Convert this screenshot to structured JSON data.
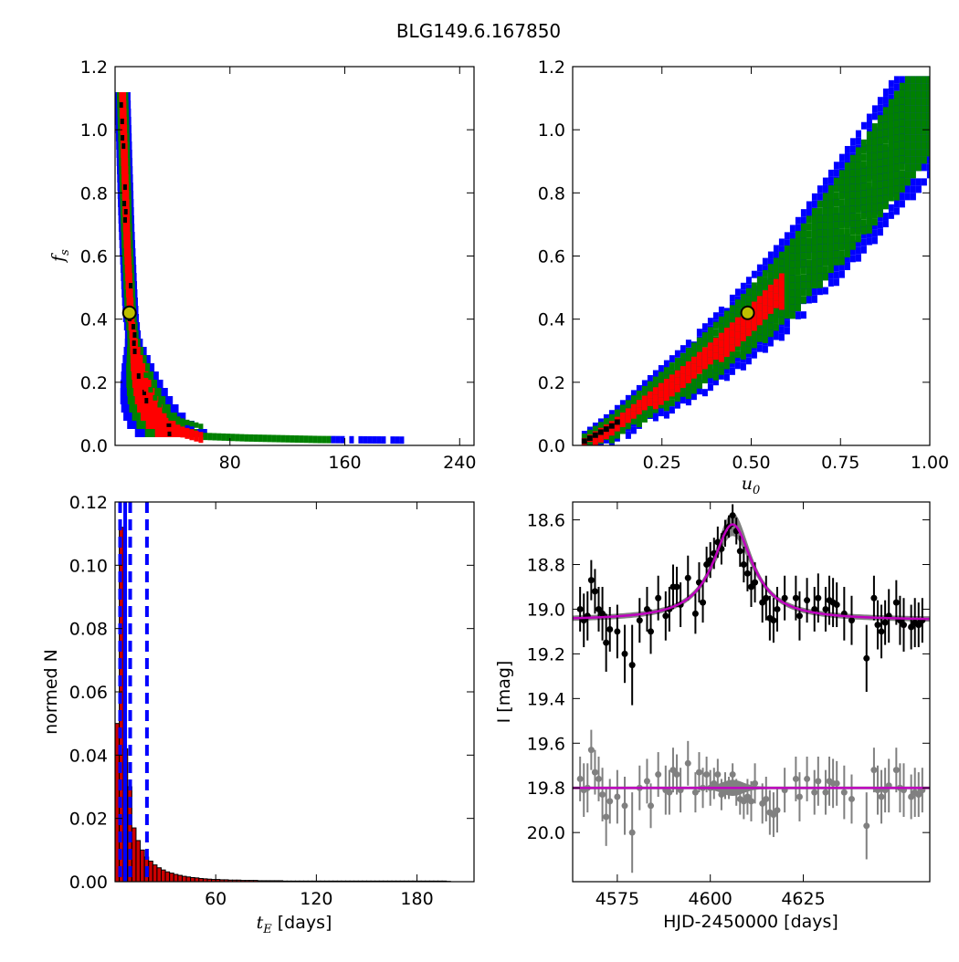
{
  "figure": {
    "title": "BLG149.6.167850"
  },
  "colors": {
    "sigma3": "#0000ff",
    "sigma2": "#008000",
    "sigma1": "#ff0000",
    "best": "#000000",
    "marker_face": "#bfbf00",
    "hist_bar": "#cc0000",
    "median_line": "#0000ff",
    "model": "#bf00bf",
    "data_points": "#000000",
    "residuals": "#808080",
    "model_band": "#808080"
  },
  "chart_data": [
    {
      "id": "fs_vs_tE",
      "type": "heatmap",
      "xlim": [
        0,
        250
      ],
      "ylim": [
        0,
        1.2
      ],
      "xticks": [
        "80",
        "160",
        "240"
      ],
      "xtick_values": [
        80,
        160,
        240
      ],
      "yticks": [
        "0.0",
        "0.2",
        "0.4",
        "0.6",
        "0.8",
        "1.0",
        "1.2"
      ],
      "ytick_values": [
        0,
        0.2,
        0.4,
        0.6,
        0.8,
        1.0,
        1.2
      ],
      "xlabel": "",
      "ylabel": "f_s",
      "levels": [
        "sigma3",
        "sigma2",
        "sigma1",
        "best"
      ],
      "ridge": [
        [
          5,
          1.16
        ],
        [
          6,
          1.0
        ],
        [
          7,
          0.85
        ],
        [
          8,
          0.7
        ],
        [
          9,
          0.6
        ],
        [
          10,
          0.5
        ],
        [
          11,
          0.42
        ],
        [
          13,
          0.34
        ],
        [
          16,
          0.26
        ],
        [
          19,
          0.2
        ],
        [
          23,
          0.14
        ],
        [
          28,
          0.1
        ],
        [
          35,
          0.06
        ],
        [
          45,
          0.04
        ],
        [
          60,
          0.02
        ],
        [
          90,
          0.015
        ],
        [
          140,
          0.01
        ],
        [
          200,
          0.008
        ]
      ],
      "best_fit": {
        "x": 10,
        "y": 0.42
      },
      "grid": false
    },
    {
      "id": "fs_vs_u0",
      "type": "heatmap",
      "xlim": [
        0,
        1.0
      ],
      "ylim": [
        0,
        1.2
      ],
      "xticks": [
        "0.25",
        "0.50",
        "0.75",
        "1.00"
      ],
      "xtick_values": [
        0.25,
        0.5,
        0.75,
        1.0
      ],
      "yticks": [
        "0.0",
        "0.2",
        "0.4",
        "0.6",
        "0.8",
        "1.0",
        "1.2"
      ],
      "ytick_values": [
        0,
        0.2,
        0.4,
        0.6,
        0.8,
        1.0,
        1.2
      ],
      "xlabel": "u_0",
      "ylabel": "",
      "ridge": [
        [
          0.02,
          0.01
        ],
        [
          0.1,
          0.06
        ],
        [
          0.2,
          0.14
        ],
        [
          0.3,
          0.22
        ],
        [
          0.4,
          0.31
        ],
        [
          0.5,
          0.41
        ],
        [
          0.6,
          0.52
        ],
        [
          0.7,
          0.66
        ],
        [
          0.8,
          0.8
        ],
        [
          0.9,
          0.95
        ],
        [
          1.0,
          1.1
        ]
      ],
      "best_fit": {
        "x": 0.49,
        "y": 0.42
      },
      "grid": false
    },
    {
      "id": "tE_histogram",
      "type": "bar",
      "xlim": [
        0,
        214
      ],
      "ylim": [
        0,
        0.12
      ],
      "xticks": [
        "60",
        "120",
        "180"
      ],
      "xtick_values": [
        60,
        120,
        180
      ],
      "yticks": [
        "0.00",
        "0.02",
        "0.04",
        "0.06",
        "0.08",
        "0.10",
        "0.12"
      ],
      "ytick_values": [
        0,
        0.02,
        0.04,
        0.06,
        0.08,
        0.1,
        0.12
      ],
      "xlabel": "t_E",
      "xlabel_suffix": "[days]",
      "ylabel": "normed N",
      "bin_width": 2.5,
      "values": [
        0.05,
        0.112,
        0.042,
        0.03,
        0.017,
        0.013,
        0.01,
        0.0078,
        0.0065,
        0.0053,
        0.0044,
        0.0037,
        0.0031,
        0.0027,
        0.0023,
        0.002,
        0.0017,
        0.0015,
        0.0013,
        0.0012,
        0.001,
        0.0009,
        0.0008,
        0.0007,
        0.0007,
        0.0006,
        0.0006,
        0.0005,
        0.0005,
        0.0005,
        0.0004,
        0.0004,
        0.0004,
        0.0004,
        0.0003,
        0.0003,
        0.0003,
        0.0003,
        0.0003,
        0.0003,
        0.0002,
        0.0002,
        0.0002,
        0.0002,
        0.0002,
        0.0002,
        0.0002,
        0.0002,
        0.0002,
        0.0002,
        0.0002,
        0.0002,
        0.0002,
        0.0002,
        0.0002,
        0.0002,
        0.0002,
        0.0002,
        0.0002,
        0.0002,
        0.0002,
        0.0002,
        0.0002,
        0.0002,
        0.0002,
        0.0002,
        0.0002,
        0.0002,
        0.0002,
        0.0002,
        0.0002,
        0.0002,
        0.0002,
        0.0002,
        0.0002,
        0.0002,
        0.0002,
        0.0002,
        0.0002,
        0.0001
      ],
      "vlines_dashed": [
        3,
        9,
        19
      ],
      "vline_solid": 6,
      "grid": false
    },
    {
      "id": "lightcurve",
      "type": "scatter",
      "xlim": [
        4563,
        4659
      ],
      "ylim": [
        20.22,
        18.52
      ],
      "xticks": [
        "4575",
        "4600",
        "4625"
      ],
      "xtick_values": [
        4575,
        4600,
        4625
      ],
      "yticks": [
        "18.6",
        "18.8",
        "19.0",
        "19.2",
        "19.4",
        "19.6",
        "19.8",
        "20.0"
      ],
      "ytick_values": [
        18.6,
        18.8,
        19.0,
        19.2,
        19.4,
        19.6,
        19.8,
        20.0
      ],
      "xlabel": "HJD-2450000 [days]",
      "ylabel": "I [mag]",
      "baseline": 19.05,
      "peak_time": 4606,
      "peak_mag": 18.62,
      "residual_offset": 19.8,
      "series": [
        {
          "x": [
            4565,
            4566,
            4567,
            4568,
            4569,
            4570,
            4571,
            4572,
            4573,
            4575,
            4577,
            4579,
            4581,
            4583,
            4584,
            4586,
            4588,
            4589,
            4590,
            4591,
            4592,
            4594,
            4596,
            4597,
            4598,
            4599,
            4600,
            4601,
            4602,
            4603,
            4604,
            4605,
            4606,
            4607,
            4608,
            4609,
            4610,
            4611,
            4612,
            4614,
            4615,
            4616,
            4617,
            4618,
            4620,
            4623,
            4624,
            4626,
            4628,
            4629,
            4631,
            4632,
            4633,
            4634,
            4636,
            4638,
            4642,
            4644,
            4645,
            4646,
            4647,
            4648,
            4650,
            4651,
            4652,
            4654,
            4655,
            4656,
            4657
          ],
          "y": [
            19.0,
            19.05,
            19.03,
            18.87,
            18.92,
            19.0,
            19.02,
            19.15,
            19.09,
            19.1,
            19.2,
            19.25,
            19.05,
            19.0,
            19.1,
            18.95,
            19.03,
            19.0,
            18.9,
            18.9,
            18.98,
            18.86,
            19.02,
            18.88,
            18.97,
            18.8,
            18.78,
            18.75,
            18.7,
            18.73,
            18.66,
            18.63,
            18.58,
            18.65,
            18.74,
            18.8,
            18.84,
            18.9,
            18.88,
            18.97,
            18.95,
            19.04,
            19.05,
            19.0,
            18.95,
            18.95,
            19.03,
            18.96,
            19.0,
            18.95,
            19.0,
            18.96,
            18.97,
            18.98,
            19.02,
            19.05,
            19.22,
            18.95,
            19.07,
            19.1,
            19.06,
            19.03,
            18.97,
            19.05,
            19.07,
            19.08,
            19.06,
            19.07,
            19.05
          ],
          "err": [
            0.1,
            0.12,
            0.11,
            0.09,
            0.1,
            0.1,
            0.12,
            0.13,
            0.1,
            0.12,
            0.13,
            0.18,
            0.1,
            0.1,
            0.1,
            0.1,
            0.11,
            0.1,
            0.1,
            0.09,
            0.1,
            0.1,
            0.09,
            0.09,
            0.09,
            0.08,
            0.08,
            0.07,
            0.07,
            0.07,
            0.06,
            0.05,
            0.05,
            0.06,
            0.07,
            0.08,
            0.08,
            0.09,
            0.09,
            0.09,
            0.1,
            0.1,
            0.1,
            0.1,
            0.1,
            0.1,
            0.11,
            0.1,
            0.1,
            0.11,
            0.1,
            0.11,
            0.11,
            0.1,
            0.12,
            0.11,
            0.15,
            0.1,
            0.11,
            0.12,
            0.1,
            0.12,
            0.1,
            0.11,
            0.12,
            0.1,
            0.11,
            0.1,
            0.1
          ]
        },
        {
          "x": [
            4565,
            4566,
            4567,
            4568,
            4569,
            4570,
            4571,
            4572,
            4573,
            4575,
            4577,
            4579,
            4581,
            4583,
            4584,
            4586,
            4588,
            4589,
            4590,
            4591,
            4592,
            4594,
            4596,
            4597,
            4598,
            4599,
            4600,
            4601,
            4602,
            4603,
            4604,
            4605,
            4606,
            4607,
            4608,
            4609,
            4610,
            4611,
            4612,
            4614,
            4615,
            4616,
            4617,
            4618,
            4620,
            4623,
            4624,
            4626,
            4628,
            4629,
            4631,
            4632,
            4633,
            4634,
            4636,
            4638,
            4642,
            4644,
            4645,
            4646,
            4647,
            4648,
            4650,
            4651,
            4652,
            4654,
            4655,
            4656,
            4657
          ],
          "y": [
            19.76,
            19.81,
            19.8,
            19.63,
            19.73,
            19.76,
            19.83,
            19.93,
            19.86,
            19.84,
            19.88,
            20.0,
            19.8,
            19.77,
            19.88,
            19.74,
            19.81,
            19.82,
            19.72,
            19.74,
            19.81,
            19.69,
            19.82,
            19.73,
            19.8,
            19.74,
            19.8,
            19.78,
            19.74,
            19.83,
            19.79,
            19.8,
            19.74,
            19.82,
            19.85,
            19.86,
            19.84,
            19.86,
            19.78,
            19.87,
            19.85,
            19.91,
            19.92,
            19.9,
            19.81,
            19.76,
            19.84,
            19.76,
            19.82,
            19.77,
            19.82,
            19.77,
            19.78,
            19.78,
            19.82,
            19.85,
            19.97,
            19.72,
            19.81,
            19.84,
            19.81,
            19.79,
            19.72,
            19.8,
            19.81,
            19.84,
            19.82,
            19.83,
            19.81
          ],
          "err": [
            0.1,
            0.12,
            0.11,
            0.09,
            0.1,
            0.1,
            0.12,
            0.13,
            0.1,
            0.12,
            0.13,
            0.18,
            0.1,
            0.1,
            0.1,
            0.1,
            0.11,
            0.1,
            0.1,
            0.09,
            0.1,
            0.1,
            0.09,
            0.09,
            0.09,
            0.08,
            0.08,
            0.07,
            0.07,
            0.07,
            0.06,
            0.05,
            0.05,
            0.06,
            0.07,
            0.08,
            0.08,
            0.09,
            0.09,
            0.09,
            0.1,
            0.1,
            0.1,
            0.1,
            0.1,
            0.1,
            0.11,
            0.1,
            0.1,
            0.11,
            0.1,
            0.11,
            0.11,
            0.1,
            0.12,
            0.11,
            0.15,
            0.1,
            0.11,
            0.12,
            0.1,
            0.12,
            0.1,
            0.11,
            0.12,
            0.1,
            0.11,
            0.1,
            0.1
          ]
        }
      ],
      "grid": false
    }
  ]
}
